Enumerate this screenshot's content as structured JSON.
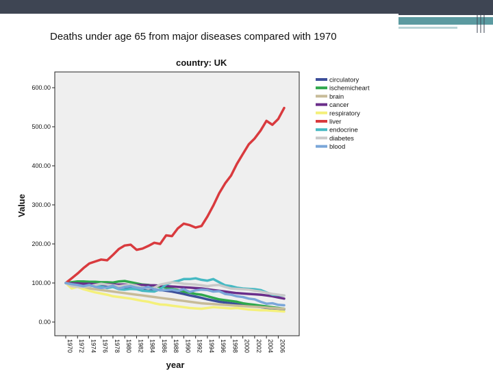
{
  "slide": {
    "accent_dark": "#3e4553",
    "accent_teal": "#5b9aa0"
  },
  "title": "Deaths under age 65 from major diseases compared with 1970",
  "subtitle": "country: UK",
  "chart_data": {
    "type": "line",
    "title": "Deaths under age 65 from major diseases compared with 1970",
    "subtitle": "country: UK",
    "xlabel": "year",
    "ylabel": "Value",
    "ylim": [
      0,
      600
    ],
    "xlim": [
      1970,
      2007
    ],
    "y_ticks": [
      0,
      100,
      200,
      300,
      400,
      500,
      600
    ],
    "y_tick_labels": [
      "0.00",
      "100.00",
      "200.00",
      "300.00",
      "400.00",
      "500.00",
      "600.00"
    ],
    "x_tick_labels": [
      "1970",
      "1972",
      "1974",
      "1976",
      "1978",
      "1980",
      "1982",
      "1984",
      "1986",
      "1988",
      "1990",
      "1992",
      "1994",
      "1996",
      "1998",
      "2000",
      "2002",
      "2004",
      "2006"
    ],
    "legend_position": "right",
    "x": [
      1970,
      1971,
      1972,
      1973,
      1974,
      1975,
      1976,
      1977,
      1978,
      1979,
      1980,
      1981,
      1982,
      1983,
      1984,
      1985,
      1986,
      1987,
      1988,
      1989,
      1990,
      1991,
      1992,
      1993,
      1994,
      1995,
      1996,
      1997,
      1998,
      1999,
      2000,
      2001,
      2002,
      2003,
      2004,
      2005,
      2006,
      2007
    ],
    "series": [
      {
        "name": "circulatory",
        "color": "#3d4f9a",
        "values": [
          100,
          98,
          97,
          96,
          95,
          94,
          93,
          92,
          91,
          90,
          89,
          88,
          87,
          86,
          85,
          84,
          82,
          80,
          78,
          75,
          72,
          68,
          65,
          62,
          58,
          55,
          52,
          50,
          48,
          46,
          44,
          42,
          40,
          38,
          36,
          35,
          34,
          33
        ]
      },
      {
        "name": "ischemicheart",
        "color": "#2fa84c",
        "values": [
          100,
          102,
          104,
          104,
          103,
          103,
          102,
          102,
          101,
          104,
          105,
          102,
          99,
          96,
          95,
          92,
          90,
          88,
          85,
          82,
          78,
          75,
          72,
          70,
          66,
          62,
          58,
          56,
          54,
          52,
          48,
          46,
          44,
          42,
          40,
          38,
          36,
          34
        ]
      },
      {
        "name": "brain",
        "color": "#c7bb98",
        "values": [
          100,
          95,
          91,
          88,
          86,
          84,
          82,
          80,
          78,
          76,
          74,
          72,
          70,
          68,
          66,
          64,
          62,
          60,
          58,
          56,
          54,
          52,
          50,
          48,
          47,
          46,
          45,
          44,
          43,
          42,
          41,
          40,
          39,
          38,
          37,
          36,
          35,
          34
        ]
      },
      {
        "name": "cancer",
        "color": "#6a2e8a",
        "values": [
          100,
          99,
          99,
          98,
          98,
          97,
          97,
          97,
          96,
          96,
          96,
          95,
          95,
          95,
          94,
          94,
          93,
          92,
          91,
          90,
          89,
          88,
          87,
          86,
          84,
          82,
          80,
          78,
          76,
          74,
          73,
          72,
          71,
          70,
          68,
          66,
          63,
          60
        ]
      },
      {
        "name": "respiratory",
        "color": "#f4f07a",
        "values": [
          100,
          86,
          90,
          84,
          80,
          76,
          73,
          70,
          66,
          64,
          62,
          60,
          57,
          54,
          52,
          48,
          45,
          44,
          42,
          40,
          38,
          36,
          35,
          34,
          36,
          38,
          37,
          36,
          35,
          36,
          34,
          32,
          31,
          30,
          30,
          29,
          28,
          27
        ]
      },
      {
        "name": "liver",
        "color": "#d93a3e",
        "values": [
          100,
          112,
          124,
          138,
          150,
          155,
          160,
          158,
          172,
          187,
          196,
          198,
          185,
          188,
          195,
          203,
          200,
          222,
          220,
          240,
          252,
          248,
          242,
          246,
          270,
          298,
          330,
          355,
          375,
          405,
          430,
          455,
          470,
          490,
          515,
          505,
          520,
          548
        ]
      },
      {
        "name": "endocrine",
        "color": "#46b9c3",
        "values": [
          100,
          96,
          94,
          92,
          92,
          93,
          91,
          87,
          90,
          84,
          83,
          85,
          84,
          80,
          79,
          78,
          84,
          96,
          102,
          105,
          110,
          110,
          112,
          108,
          106,
          110,
          102,
          94,
          92,
          88,
          86,
          85,
          84,
          82,
          76,
          70,
          69,
          68
        ]
      },
      {
        "name": "diabetes",
        "color": "#c9c9c9",
        "values": [
          100,
          92,
          90,
          90,
          92,
          95,
          98,
          96,
          94,
          92,
          94,
          96,
          93,
          88,
          86,
          88,
          96,
          99,
          102,
          100,
          98,
          97,
          96,
          94,
          92,
          94,
          95,
          90,
          86,
          85,
          84,
          83,
          80,
          78,
          75,
          72,
          70,
          68
        ]
      },
      {
        "name": "blood",
        "color": "#7aa6d9",
        "values": [
          100,
          97,
          95,
          92,
          95,
          90,
          87,
          89,
          93,
          85,
          90,
          92,
          88,
          86,
          90,
          84,
          81,
          82,
          83,
          80,
          84,
          77,
          81,
          83,
          82,
          78,
          79,
          72,
          70,
          66,
          64,
          60,
          58,
          52,
          47,
          48,
          44,
          43
        ]
      }
    ]
  }
}
